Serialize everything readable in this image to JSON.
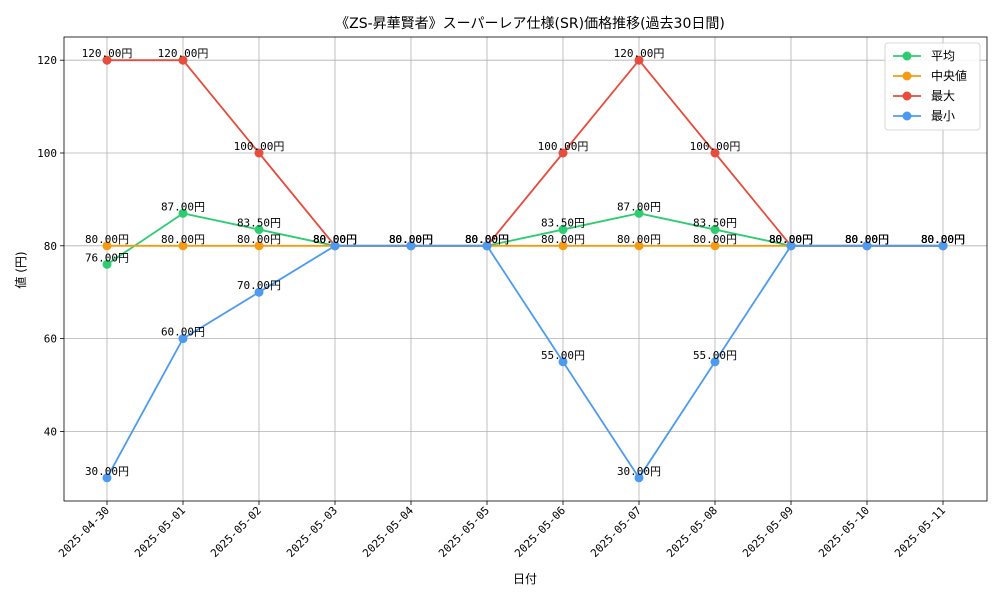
{
  "chart_data": {
    "type": "line",
    "title": "《ZS-昇華賢者》スーパーレア仕様(SR)価格推移(過去30日間)",
    "xlabel": "日付",
    "ylabel": "値 (円)",
    "ylim": [
      25,
      125
    ],
    "yticks": [
      40,
      60,
      80,
      100,
      120
    ],
    "grid": true,
    "legend_position": "top-right",
    "value_suffix": "円",
    "categories": [
      "2025-04-30",
      "2025-05-01",
      "2025-05-02",
      "2025-05-03",
      "2025-05-04",
      "2025-05-05",
      "2025-05-06",
      "2025-05-07",
      "2025-05-08",
      "2025-05-09",
      "2025-05-10",
      "2025-05-11"
    ],
    "series": [
      {
        "name": "平均",
        "color": "#2ecc71",
        "values": [
          76,
          87,
          83.5,
          80,
          80,
          80,
          83.5,
          87,
          83.5,
          80,
          80,
          80
        ]
      },
      {
        "name": "中央値",
        "color": "#f39c12",
        "values": [
          80,
          80,
          80,
          80,
          80,
          80,
          80,
          80,
          80,
          80,
          80,
          80
        ]
      },
      {
        "name": "最大",
        "color": "#e74c3c",
        "values": [
          120,
          120,
          100,
          80,
          80,
          80,
          100,
          120,
          100,
          80,
          80,
          80
        ]
      },
      {
        "name": "最小",
        "color": "#4c9bf0",
        "values": [
          30,
          60,
          70,
          80,
          80,
          80,
          55,
          30,
          55,
          80,
          80,
          80
        ]
      }
    ]
  }
}
